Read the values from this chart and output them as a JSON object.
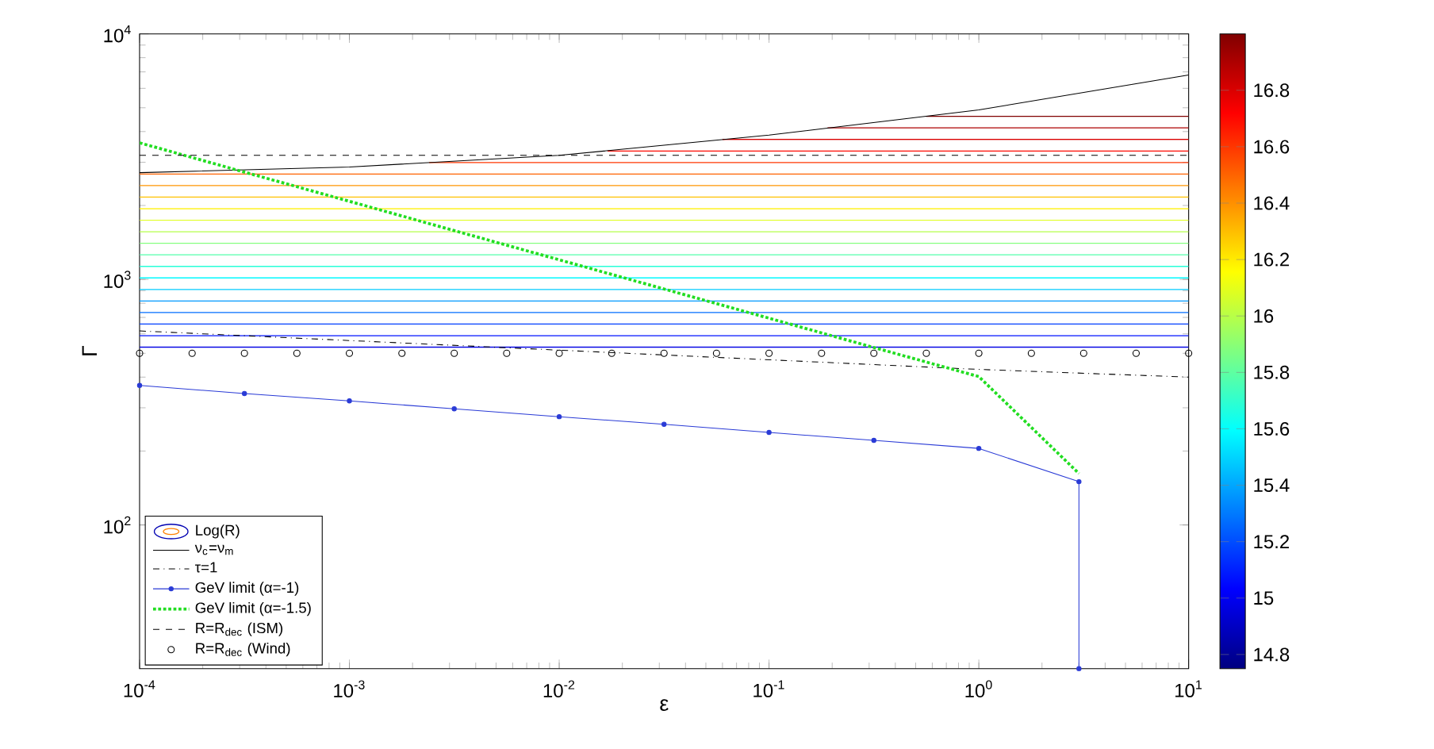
{
  "chart_data": {
    "type": "line",
    "xlabel": "ε",
    "ylabel": "Γ",
    "clabel": "Log(R)",
    "log": "xy",
    "grid": false,
    "legend": "bottom left",
    "xlim": [
      0.0001,
      10
    ],
    "ylim": [
      26,
      10000
    ],
    "xticks": [
      {
        "value": 0.0001,
        "label": "10$^{-4}$"
      },
      {
        "value": 0.001,
        "label": "10$^{-3}$"
      },
      {
        "value": 0.01,
        "label": "10$^{-2}$"
      },
      {
        "value": 0.1,
        "label": "10$^{-1}$"
      },
      {
        "value": 1,
        "label": "10$^{0}$"
      },
      {
        "value": 10,
        "label": "10$^{1}$"
      }
    ],
    "yticks": [
      {
        "value": 100,
        "label": "10$^{2}$"
      },
      {
        "value": 1000,
        "label": "10$^{3}$"
      },
      {
        "value": 10000,
        "label": "10$^{4}$"
      }
    ],
    "clim": [
      14.75,
      17.0
    ],
    "cticks": [
      14.8,
      15,
      15.2,
      15.4,
      15.6,
      15.8,
      16,
      16.2,
      16.4,
      16.6,
      16.8
    ],
    "series": [
      {
        "color": "#0000e3",
        "x": [
          0.0001,
          10
        ],
        "values": [
          530,
          530
        ]
      },
      {
        "color": "#0012ff",
        "x": [
          0.0001,
          10
        ],
        "values": [
          590,
          590
        ]
      },
      {
        "color": "#003fff",
        "x": [
          0.0001,
          10
        ],
        "values": [
          658,
          658
        ]
      },
      {
        "color": "#006cff",
        "x": [
          0.0001,
          10
        ],
        "values": [
          733,
          733
        ]
      },
      {
        "color": "#0099ff",
        "x": [
          0.0001,
          10
        ],
        "values": [
          817,
          817
        ]
      },
      {
        "color": "#00cbff",
        "x": [
          0.0001,
          10
        ],
        "values": [
          910,
          910
        ]
      },
      {
        "color": "#00f9ff",
        "x": [
          0.0001,
          10
        ],
        "values": [
          1014,
          1014
        ]
      },
      {
        "color": "#27ffd8",
        "x": [
          0.0001,
          10
        ],
        "values": [
          1130,
          1130
        ]
      },
      {
        "color": "#54ffab",
        "x": [
          0.0001,
          10
        ],
        "values": [
          1259,
          1259
        ]
      },
      {
        "color": "#82ff7d",
        "x": [
          0.0001,
          10
        ],
        "values": [
          1403,
          1403
        ]
      },
      {
        "color": "#b4ff4b",
        "x": [
          0.0001,
          10
        ],
        "values": [
          1563,
          1563
        ]
      },
      {
        "color": "#e1ff1e",
        "x": [
          0.0001,
          10
        ],
        "values": [
          1742,
          1742
        ]
      },
      {
        "color": "#fff000",
        "x": [
          0.0001,
          10
        ],
        "values": [
          1941,
          1941
        ]
      },
      {
        "color": "#ffc200",
        "x": [
          0.0001,
          10
        ],
        "values": [
          2163,
          2163
        ]
      },
      {
        "color": "#ff9500",
        "x": [
          0.0001,
          10
        ],
        "values": [
          2410,
          2410
        ]
      },
      {
        "color": "#ff6300",
        "x": [
          0.0001,
          10
        ],
        "values": [
          2685,
          2685
        ]
      },
      {
        "color": "#ff3600",
        "x": [
          0.0024,
          10
        ],
        "values": [
          2992,
          2992
        ]
      },
      {
        "color": "#ff0900",
        "x": [
          0.017,
          10
        ],
        "values": [
          3334,
          3334
        ]
      },
      {
        "color": "#da0000",
        "x": [
          0.06,
          10
        ],
        "values": [
          3715,
          3715
        ]
      },
      {
        "color": "#ad0000",
        "x": [
          0.19,
          10
        ],
        "values": [
          4140,
          4140
        ]
      },
      {
        "color": "#800000",
        "x": [
          0.56,
          10
        ],
        "values": [
          4613,
          4613
        ]
      },
      {
        "name": "ν$_{c}$=ν$_{m}$",
        "color": "#000000",
        "line_style": "solid",
        "x": [
          0.0001,
          0.001,
          0.01,
          0.1,
          1,
          10
        ],
        "values": [
          2720,
          2870,
          3200,
          3870,
          4900,
          6800
        ]
      },
      {
        "name": "τ=1",
        "color": "#000000",
        "line_style": "dashdot",
        "x": [
          0.0001,
          1,
          10
        ],
        "values": [
          617,
          430,
          400
        ]
      },
      {
        "name": "GeV limit (α=-1)",
        "color": "#2a3bd6",
        "line_style": "solid",
        "marker": "circle",
        "x": [
          0.0001,
          0.000316,
          0.001,
          0.00316,
          0.01,
          0.0316,
          0.1,
          0.316,
          1,
          3,
          3
        ],
        "values": [
          370,
          343,
          320,
          297,
          276,
          257,
          238,
          221,
          205,
          150,
          26
        ]
      },
      {
        "name": "GeV limit (α=-1.5)",
        "color": "#22dd22",
        "line_style": "dotted",
        "x": [
          0.0001,
          0.000316,
          0.001,
          0.00316,
          0.01,
          0.0316,
          0.1,
          0.316,
          1,
          3
        ],
        "values": [
          3600,
          2735,
          2080,
          1580,
          1202,
          914,
          695,
          528,
          402,
          162
        ]
      },
      {
        "name": "R=R$_{dec}$ (ISM)",
        "color": "#000000",
        "line_style": "dashed",
        "x": [
          0.0001,
          10
        ],
        "values": [
          3200,
          3200
        ]
      },
      {
        "name": "R=R$_{dec}$ (Wind)",
        "type": "scatter",
        "color": "#000000",
        "marker": "circle",
        "x": [
          0.0001,
          0.000178,
          0.000316,
          0.000562,
          0.001,
          0.00178,
          0.00316,
          0.00562,
          0.01,
          0.0178,
          0.0316,
          0.0562,
          0.1,
          0.178,
          0.316,
          0.562,
          1,
          1.78,
          3.16,
          5.62,
          10
        ],
        "values": [
          500,
          500,
          500,
          500,
          500,
          500,
          500,
          500,
          500,
          500,
          500,
          500,
          500,
          500,
          500,
          500,
          500,
          500,
          500,
          500,
          500
        ]
      }
    ]
  }
}
